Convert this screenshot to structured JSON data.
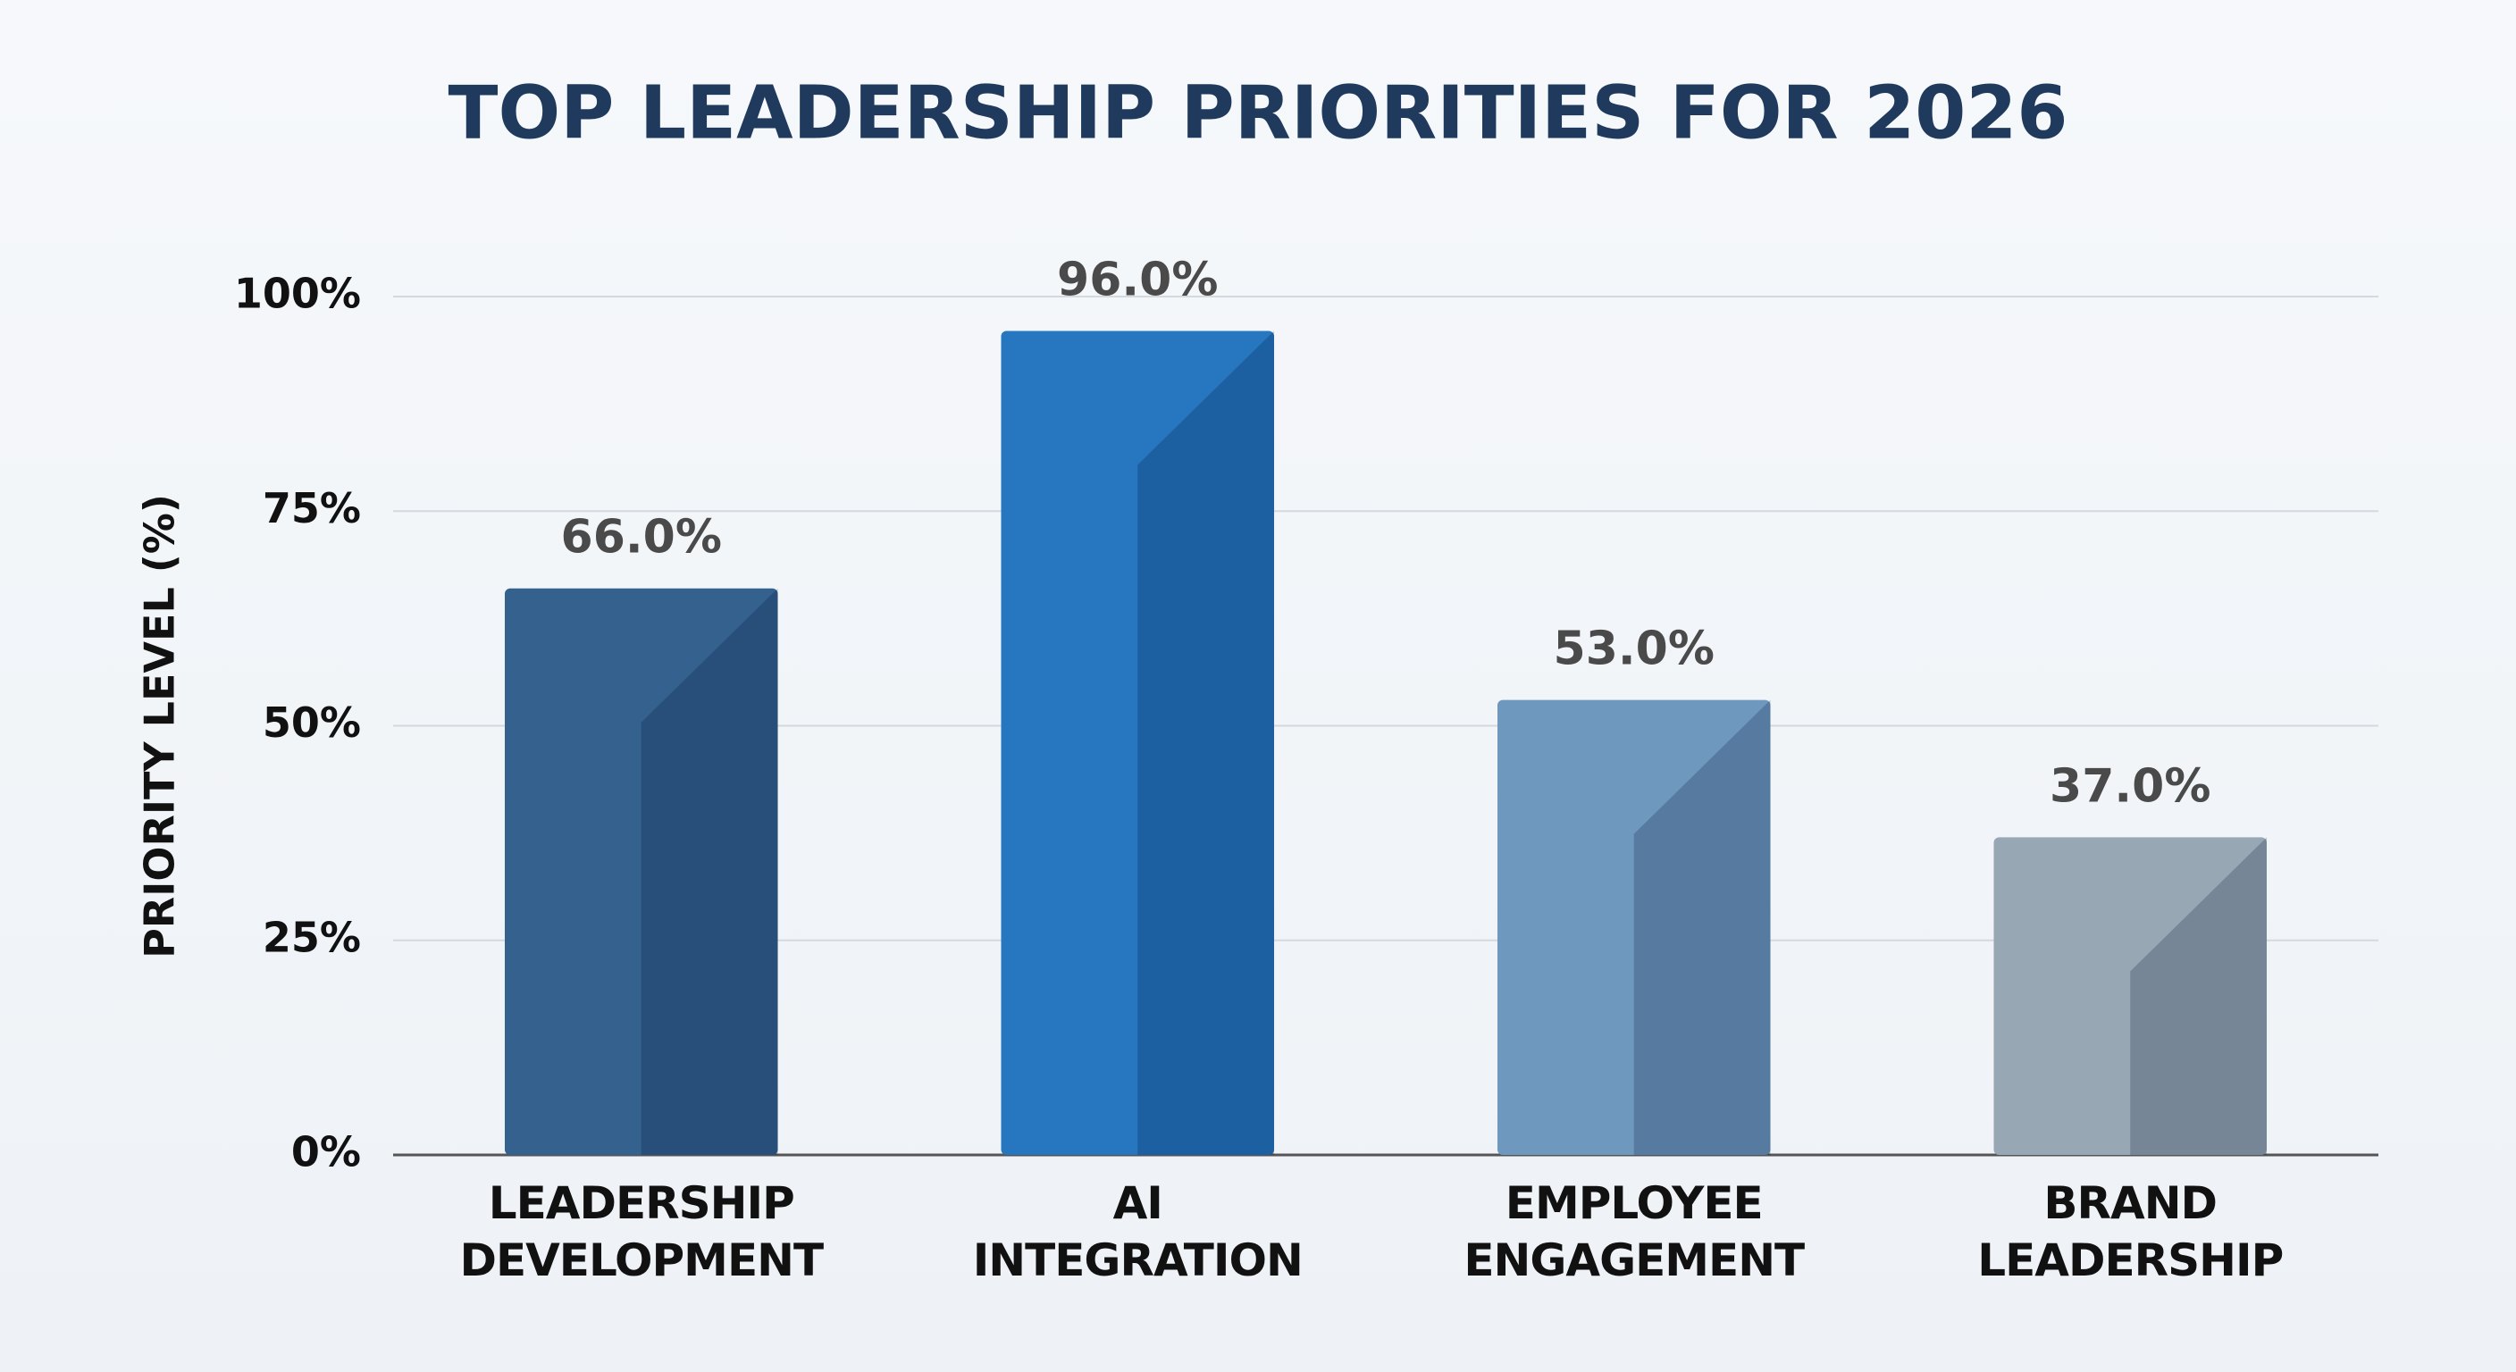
{
  "chart_data": {
    "type": "bar",
    "title": "TOP LEADERSHIP PRIORITIES FOR 2026",
    "y_label": "PRIORITY LEVEL (%)",
    "categories": [
      "LEADERSHIP DEVELOPMENT",
      "AI INTEGRATION",
      "EMPLOYEE ENGAGEMENT",
      "BRAND LEADERSHIP"
    ],
    "values": [
      66,
      96,
      53,
      37
    ],
    "value_labels": [
      "66.0%",
      "96.0%",
      "53.0%",
      "37.0%"
    ],
    "colors": [
      "#34618e",
      "#2677c0",
      "#6f98bf",
      "#98a7b4"
    ],
    "ylim": [
      0,
      100
    ],
    "yticks": [
      {
        "value": 0,
        "label": "0%"
      },
      {
        "value": 25,
        "label": "25%"
      },
      {
        "value": 50,
        "label": "50%"
      },
      {
        "value": 75,
        "label": "75%"
      },
      {
        "value": 100,
        "label": "100%"
      }
    ],
    "grid": true
  }
}
